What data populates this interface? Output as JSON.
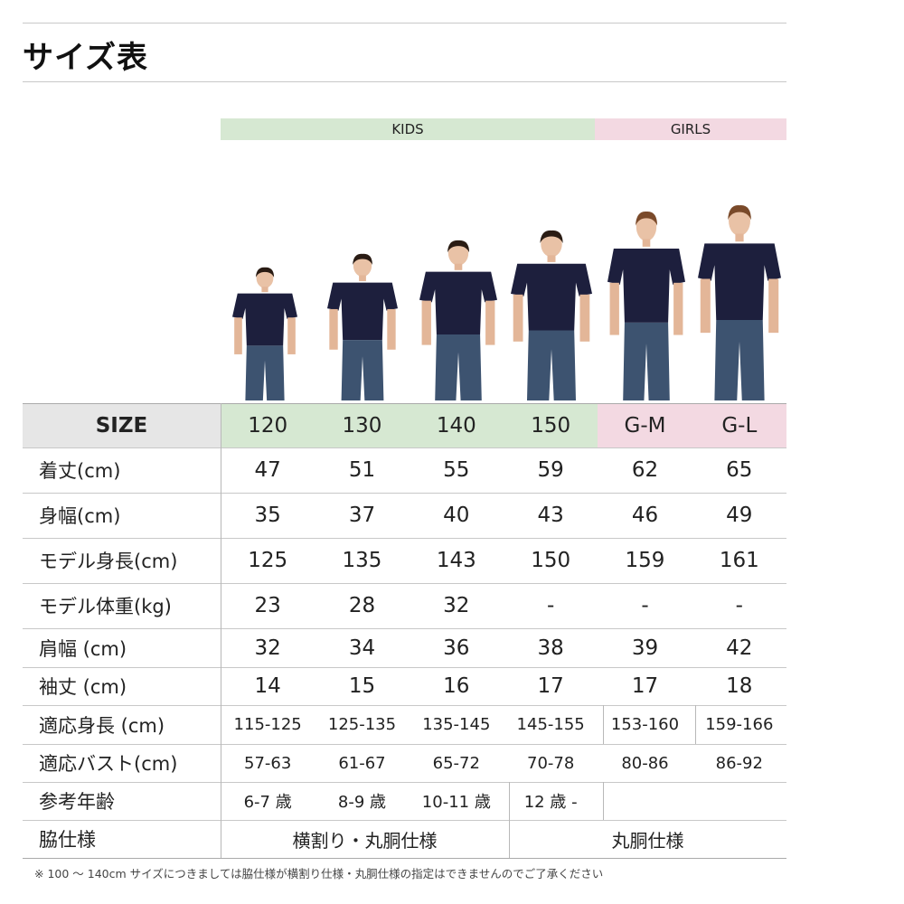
{
  "title": "サイズ表",
  "groups": {
    "kids": "KIDS",
    "girls": "GIRLS"
  },
  "colors": {
    "kids": "#d6e8d2",
    "girls": "#f3d9e2",
    "size_header": "#e6e6e6",
    "shirt": "#1d1f3d",
    "jeans": "#3d5370"
  },
  "models": [
    "120",
    "130",
    "140",
    "150",
    "G-M",
    "G-L"
  ],
  "table": {
    "size_label": "SIZE",
    "sizes": [
      "120",
      "130",
      "140",
      "150",
      "G-M",
      "G-L"
    ],
    "rows": [
      {
        "label": "着丈(cm)",
        "values": [
          "47",
          "51",
          "55",
          "59",
          "62",
          "65"
        ]
      },
      {
        "label": "身幅(cm)",
        "values": [
          "35",
          "37",
          "40",
          "43",
          "46",
          "49"
        ]
      },
      {
        "label": "モデル身長(cm)",
        "values": [
          "125",
          "135",
          "143",
          "150",
          "159",
          "161"
        ]
      },
      {
        "label": "モデル体重(kg)",
        "values": [
          "23",
          "28",
          "32",
          "-",
          "-",
          "-"
        ]
      },
      {
        "label": "肩幅 (cm)",
        "values": [
          "32",
          "34",
          "36",
          "38",
          "39",
          "42"
        ]
      },
      {
        "label": "袖丈 (cm)",
        "values": [
          "14",
          "15",
          "16",
          "17",
          "17",
          "18"
        ]
      },
      {
        "label": "適応身長 (cm)",
        "values": [
          "115-125",
          "125-135",
          "135-145",
          "145-155",
          "153-160",
          "159-166"
        ]
      },
      {
        "label": "適応バスト(cm)",
        "values": [
          "57-63",
          "61-67",
          "65-72",
          "70-78",
          "80-86",
          "86-92"
        ]
      },
      {
        "label": "参考年齢",
        "values": [
          "6-7 歳",
          "8-9 歳",
          "10-11 歳",
          "12 歳 -"
        ]
      },
      {
        "label": "脇仕様",
        "values": [
          "横割り・丸胴仕様",
          "丸胴仕様"
        ]
      }
    ]
  },
  "footnote": "※ 100 ～ 140cm サイズにつきましては脇仕様が横割り仕様・丸胴仕様の指定はできませんのでご了承ください"
}
